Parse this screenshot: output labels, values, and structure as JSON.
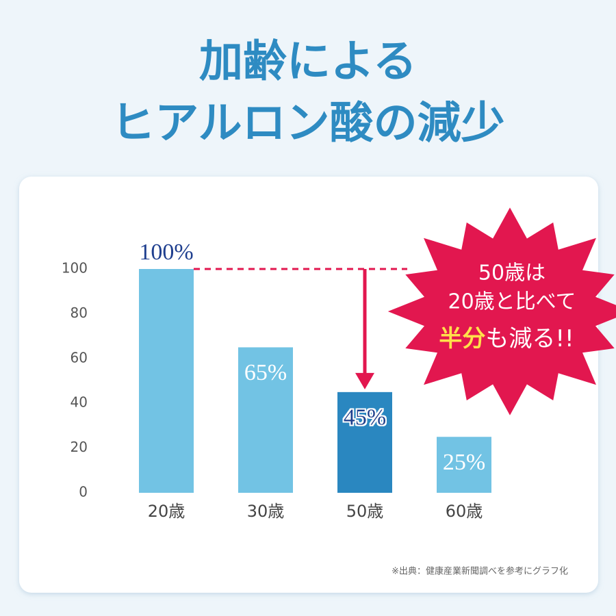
{
  "title_lines": [
    "加齢による",
    "ヒアルロン酸の減少"
  ],
  "chart_data": {
    "type": "bar",
    "categories": [
      "20歳",
      "30歳",
      "50歳",
      "60歳"
    ],
    "values": [
      100,
      65,
      45,
      25
    ],
    "value_labels": [
      "100%",
      "65%",
      "45%",
      "25%"
    ],
    "colors": [
      "#72c3e4",
      "#72c3e4",
      "#2a87c0",
      "#72c3e4"
    ],
    "ylim": [
      0,
      100
    ],
    "yticks": [
      0,
      20,
      40,
      60,
      80,
      100
    ],
    "grid": false
  },
  "callout": {
    "lines": [
      "50歳は",
      "20歳と比べて"
    ],
    "highlight": "半分",
    "rest": "も減る!!"
  },
  "source": "※出典：健康産業新聞調べを参考にグラフ化"
}
